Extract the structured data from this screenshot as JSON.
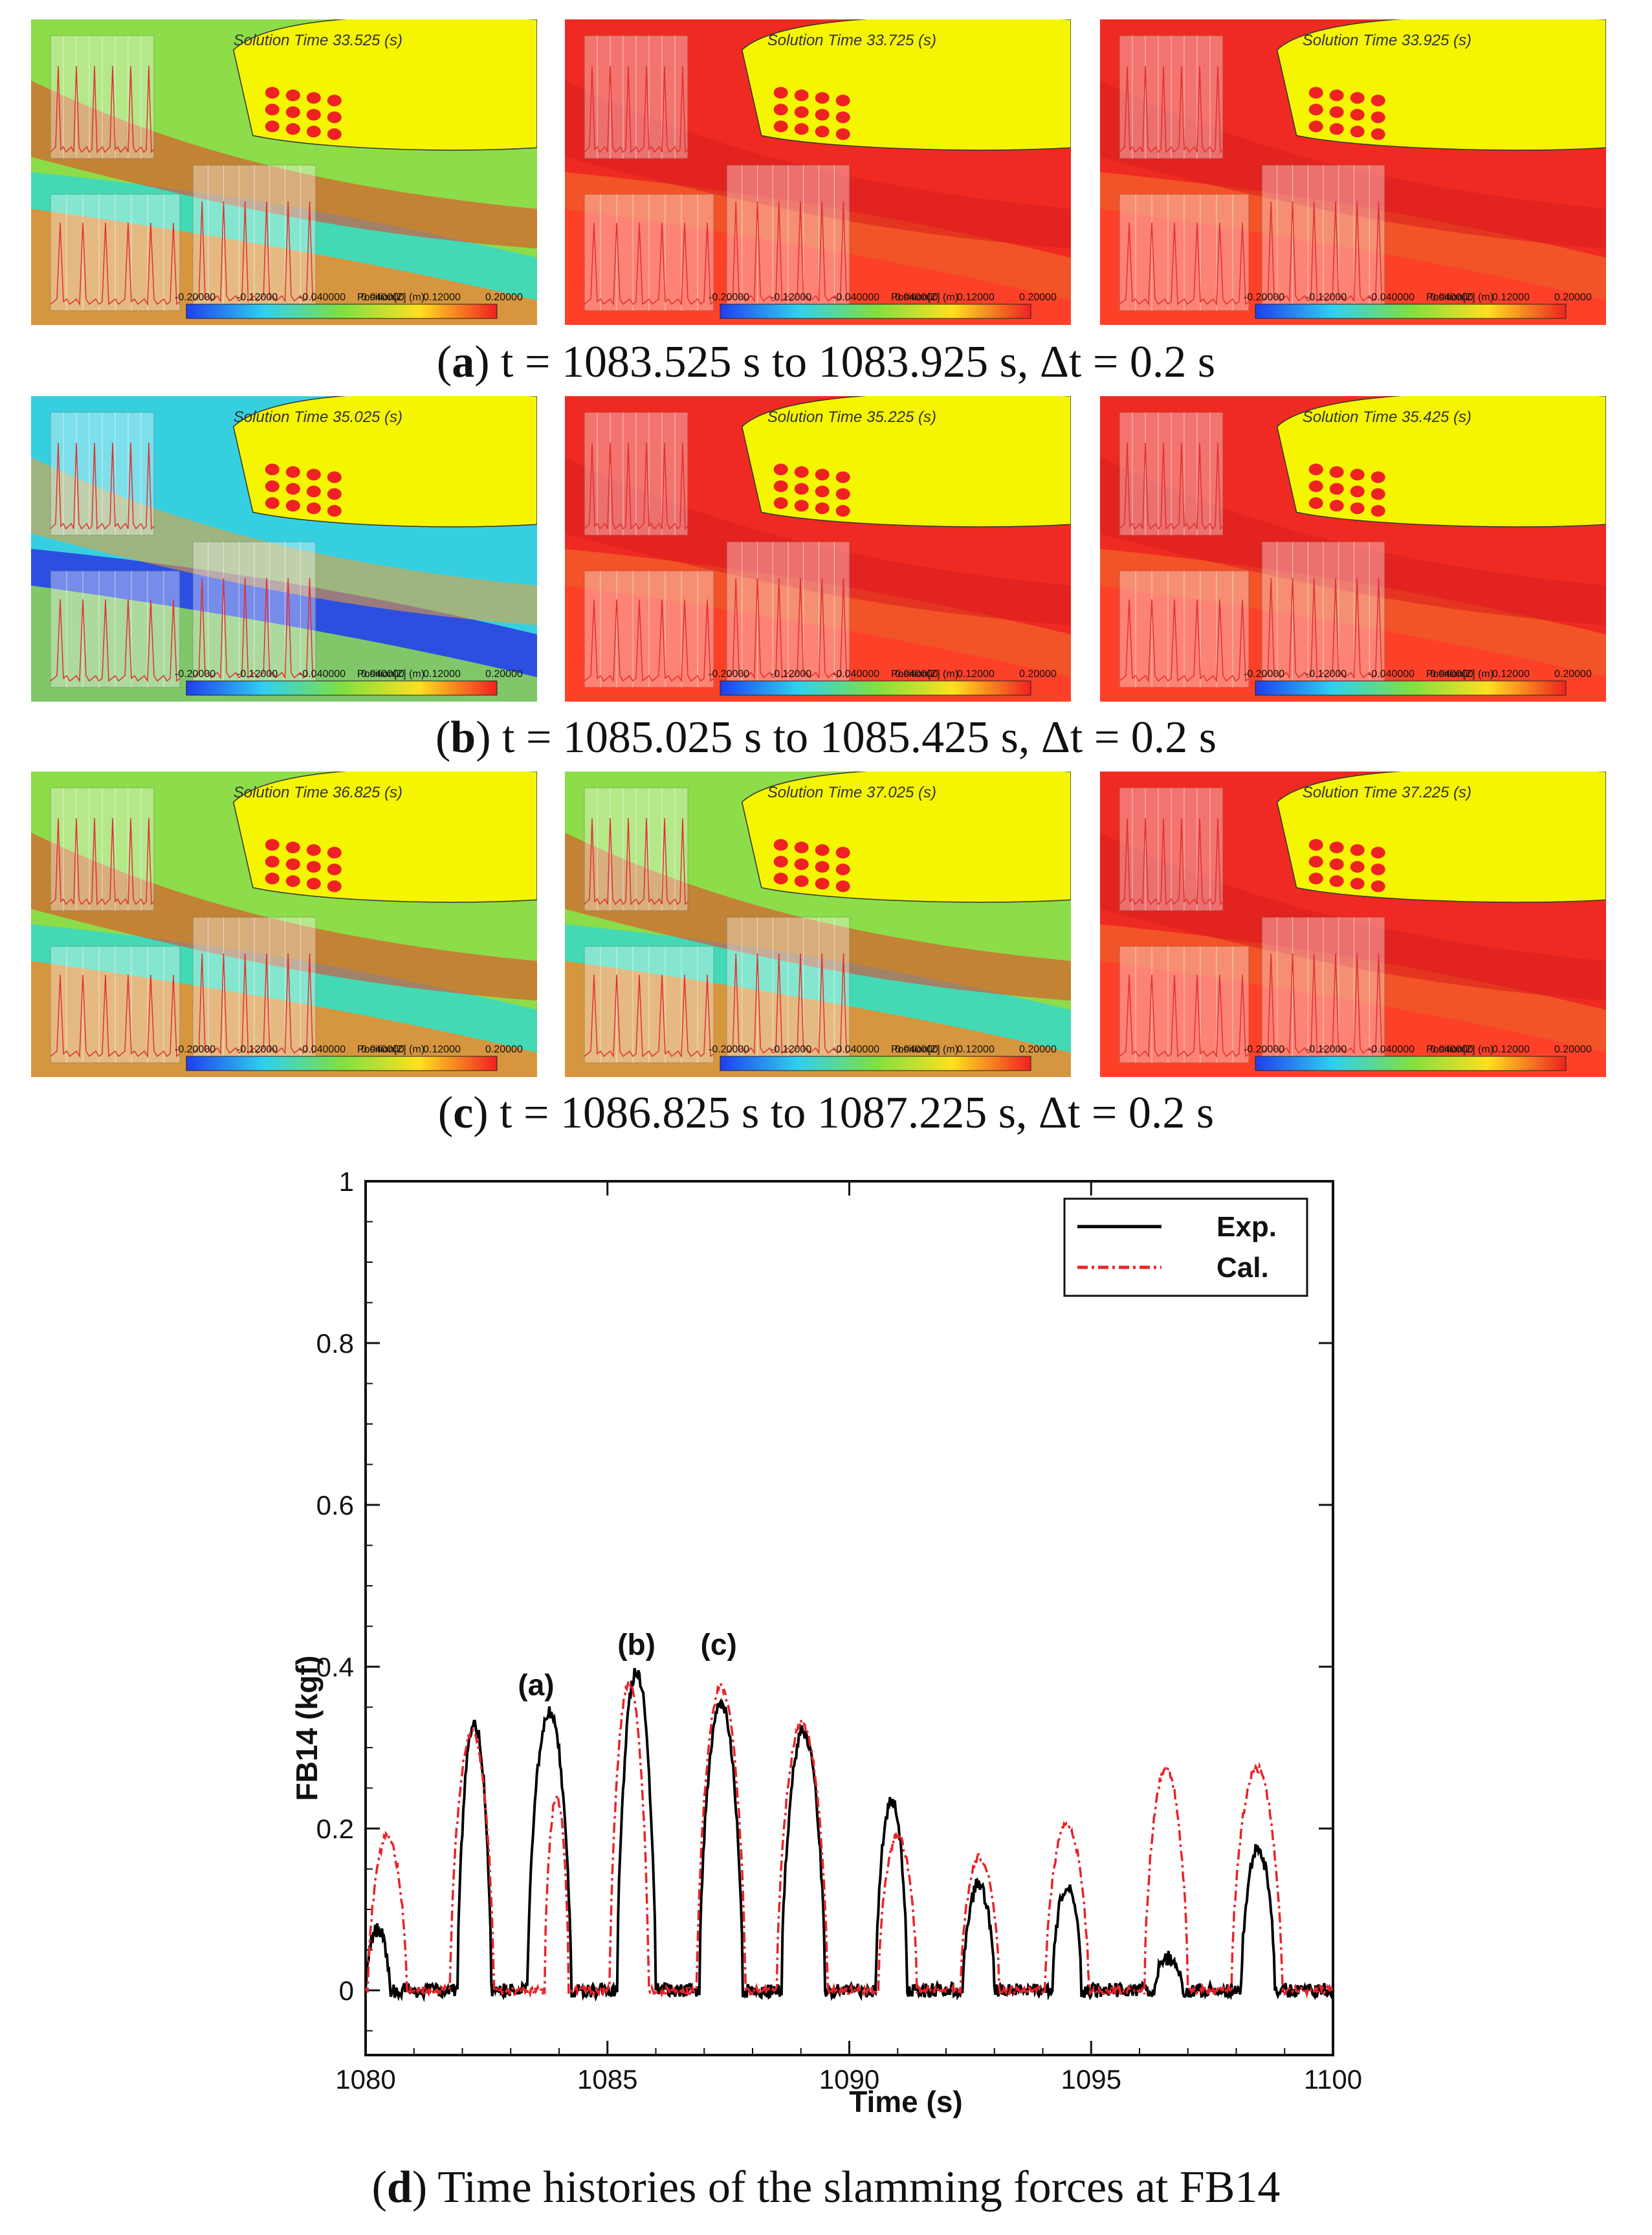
{
  "colors": {
    "hull": "#f5f500",
    "red": "#ee2222",
    "green": "#7ad23a",
    "cyan": "#36d8c8",
    "blue": "#3a3ee6",
    "exp_line": "#000000",
    "cal_line": "#e8242b"
  },
  "snapshots": {
    "rows": [
      {
        "caption_letter": "a",
        "caption_text": ") t = 1083.525 s to 1083.925 s, Δt = 0.2 s",
        "panels": [
          {
            "solution_time": "Solution Time 33.525 (s)",
            "scheme": "green"
          },
          {
            "solution_time": "Solution Time 33.725 (s)",
            "scheme": "red"
          },
          {
            "solution_time": "Solution Time 33.925 (s)",
            "scheme": "red"
          }
        ]
      },
      {
        "caption_letter": "b",
        "caption_text": ") t = 1085.025 s to 1085.425 s, Δt = 0.2 s",
        "panels": [
          {
            "solution_time": "Solution Time 35.025 (s)",
            "scheme": "blue"
          },
          {
            "solution_time": "Solution Time 35.225 (s)",
            "scheme": "red"
          },
          {
            "solution_time": "Solution Time 35.425 (s)",
            "scheme": "red"
          }
        ]
      },
      {
        "caption_letter": "c",
        "caption_text": ") t = 1086.825 s to 1087.225 s, Δt = 0.2 s",
        "panels": [
          {
            "solution_time": "Solution Time 36.825 (s)",
            "scheme": "green"
          },
          {
            "solution_time": "Solution Time 37.025 (s)",
            "scheme": "green"
          },
          {
            "solution_time": "Solution Time 37.225 (s)",
            "scheme": "red"
          }
        ]
      }
    ],
    "colorbar_title": "Position[Z] (m)",
    "colorbar_ticks": [
      "-0.20000",
      "-0.12000",
      "-0.040000",
      "0.040000",
      "0.12000",
      "0.20000"
    ]
  },
  "chart_data": {
    "type": "line",
    "title": "",
    "xlabel": "Time (s)",
    "ylabel": "FB14 (kgf)",
    "xlim": [
      1080,
      1100
    ],
    "ylim": [
      -0.08,
      1.0
    ],
    "xticks": [
      1080,
      1085,
      1090,
      1095,
      1100
    ],
    "yticks": [
      0,
      0.2,
      0.4,
      0.6,
      0.8,
      1
    ],
    "xtick_labels": [
      "1080",
      "1085",
      "1090",
      "1095",
      "1100"
    ],
    "ytick_labels": [
      "0",
      "0.2",
      "0.4",
      "0.6",
      "0.8",
      "1"
    ],
    "legend_position": "top-right",
    "series": [
      {
        "name": "Exp.",
        "style": "solid black",
        "peaks": [
          {
            "start": 1080.0,
            "end": 1080.5,
            "peak": 0.075
          },
          {
            "start": 1081.9,
            "end": 1082.6,
            "peak": 0.33
          },
          {
            "start": 1083.35,
            "end": 1084.25,
            "peak": 0.345
          },
          {
            "start": 1085.2,
            "end": 1086.0,
            "peak": 0.395
          },
          {
            "start": 1086.9,
            "end": 1087.8,
            "peak": 0.355
          },
          {
            "start": 1088.6,
            "end": 1089.5,
            "peak": 0.32
          },
          {
            "start": 1090.55,
            "end": 1091.2,
            "peak": 0.235
          },
          {
            "start": 1092.35,
            "end": 1093.0,
            "peak": 0.13
          },
          {
            "start": 1094.2,
            "end": 1094.8,
            "peak": 0.13
          },
          {
            "start": 1096.3,
            "end": 1096.9,
            "peak": 0.04
          },
          {
            "start": 1098.1,
            "end": 1098.8,
            "peak": 0.175
          }
        ]
      },
      {
        "name": "Cal.",
        "style": "dash-dot red",
        "peaks": [
          {
            "start": 1080.05,
            "end": 1080.85,
            "peak": 0.19
          },
          {
            "start": 1081.75,
            "end": 1082.65,
            "peak": 0.32
          },
          {
            "start": 1083.7,
            "end": 1084.2,
            "peak": 0.24
          },
          {
            "start": 1085.05,
            "end": 1085.85,
            "peak": 0.38
          },
          {
            "start": 1086.85,
            "end": 1087.85,
            "peak": 0.375
          },
          {
            "start": 1088.5,
            "end": 1089.55,
            "peak": 0.33
          },
          {
            "start": 1090.6,
            "end": 1091.4,
            "peak": 0.19
          },
          {
            "start": 1092.3,
            "end": 1093.1,
            "peak": 0.165
          },
          {
            "start": 1094.05,
            "end": 1094.95,
            "peak": 0.205
          },
          {
            "start": 1096.1,
            "end": 1097.0,
            "peak": 0.275
          },
          {
            "start": 1097.9,
            "end": 1098.95,
            "peak": 0.275
          }
        ]
      }
    ],
    "annotations": [
      {
        "text": "(a)",
        "x": 1083.525,
        "y": 0.365
      },
      {
        "text": "(b)",
        "x": 1085.6,
        "y": 0.415
      },
      {
        "text": "(c)",
        "x": 1087.3,
        "y": 0.415
      }
    ],
    "caption_letter": "d",
    "caption_text": ") Time histories of the slamming forces at FB14"
  }
}
